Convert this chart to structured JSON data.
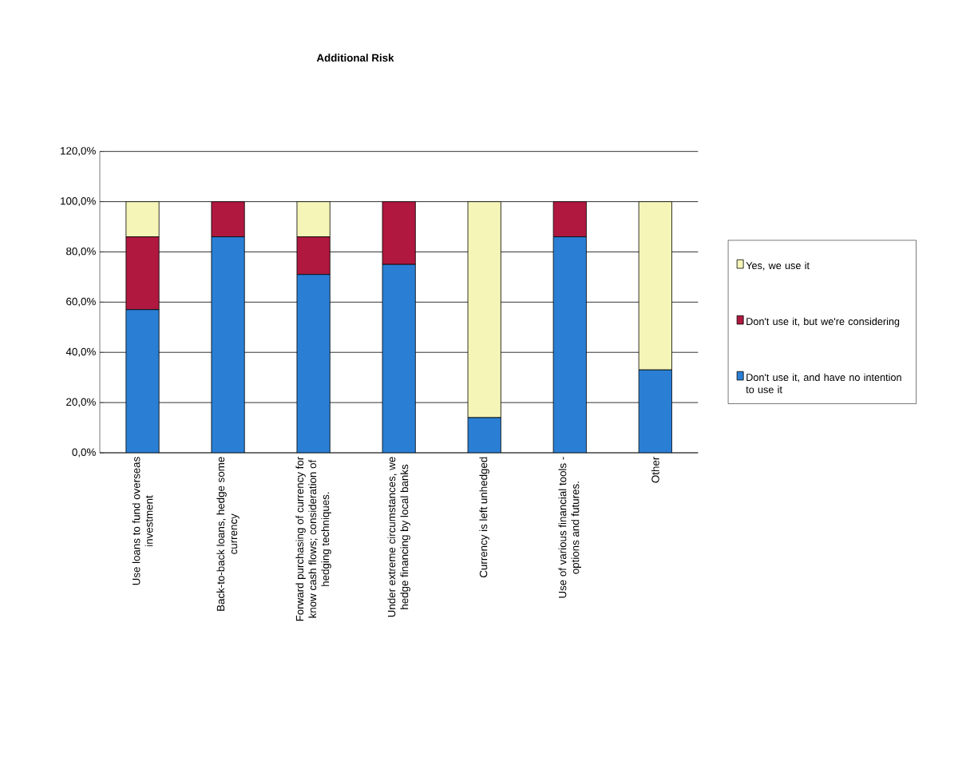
{
  "chart_data": {
    "type": "bar",
    "title": "Additional Risk",
    "stacked": true,
    "categories": [
      "Use loans to fund overseas investment",
      "Back-to-back loans, hedge some currency",
      "Forward purchasing of currency for know cash flows; consideration of hedging techniques.",
      "Under extreme circumstances, we hedge financing by local banks",
      "Currency is left unhedged",
      "Use of various financial tools - options and futures.",
      "Other"
    ],
    "series": [
      {
        "name": "Don't use it, and have no intention to use it",
        "color": "#2a7fd4",
        "values": [
          57,
          86,
          71,
          75,
          14,
          86,
          33
        ]
      },
      {
        "name": "Don't use it, but we're considering",
        "color": "#b0183f",
        "values": [
          29,
          14,
          15,
          25,
          0,
          14,
          0
        ]
      },
      {
        "name": "Yes, we use it",
        "color": "#f5f5b8",
        "values": [
          14,
          0,
          14,
          0,
          86,
          0,
          67
        ]
      }
    ],
    "ylim": [
      0,
      120
    ],
    "yticks": [
      {
        "value": 0,
        "label": "0,0%"
      },
      {
        "value": 20,
        "label": "20,0%"
      },
      {
        "value": 40,
        "label": "40,0%"
      },
      {
        "value": 60,
        "label": "60,0%"
      },
      {
        "value": 80,
        "label": "80,0%"
      },
      {
        "value": 100,
        "label": "100,0%"
      },
      {
        "value": 120,
        "label": "120,0%"
      }
    ],
    "grid": "y",
    "legend": "right"
  }
}
